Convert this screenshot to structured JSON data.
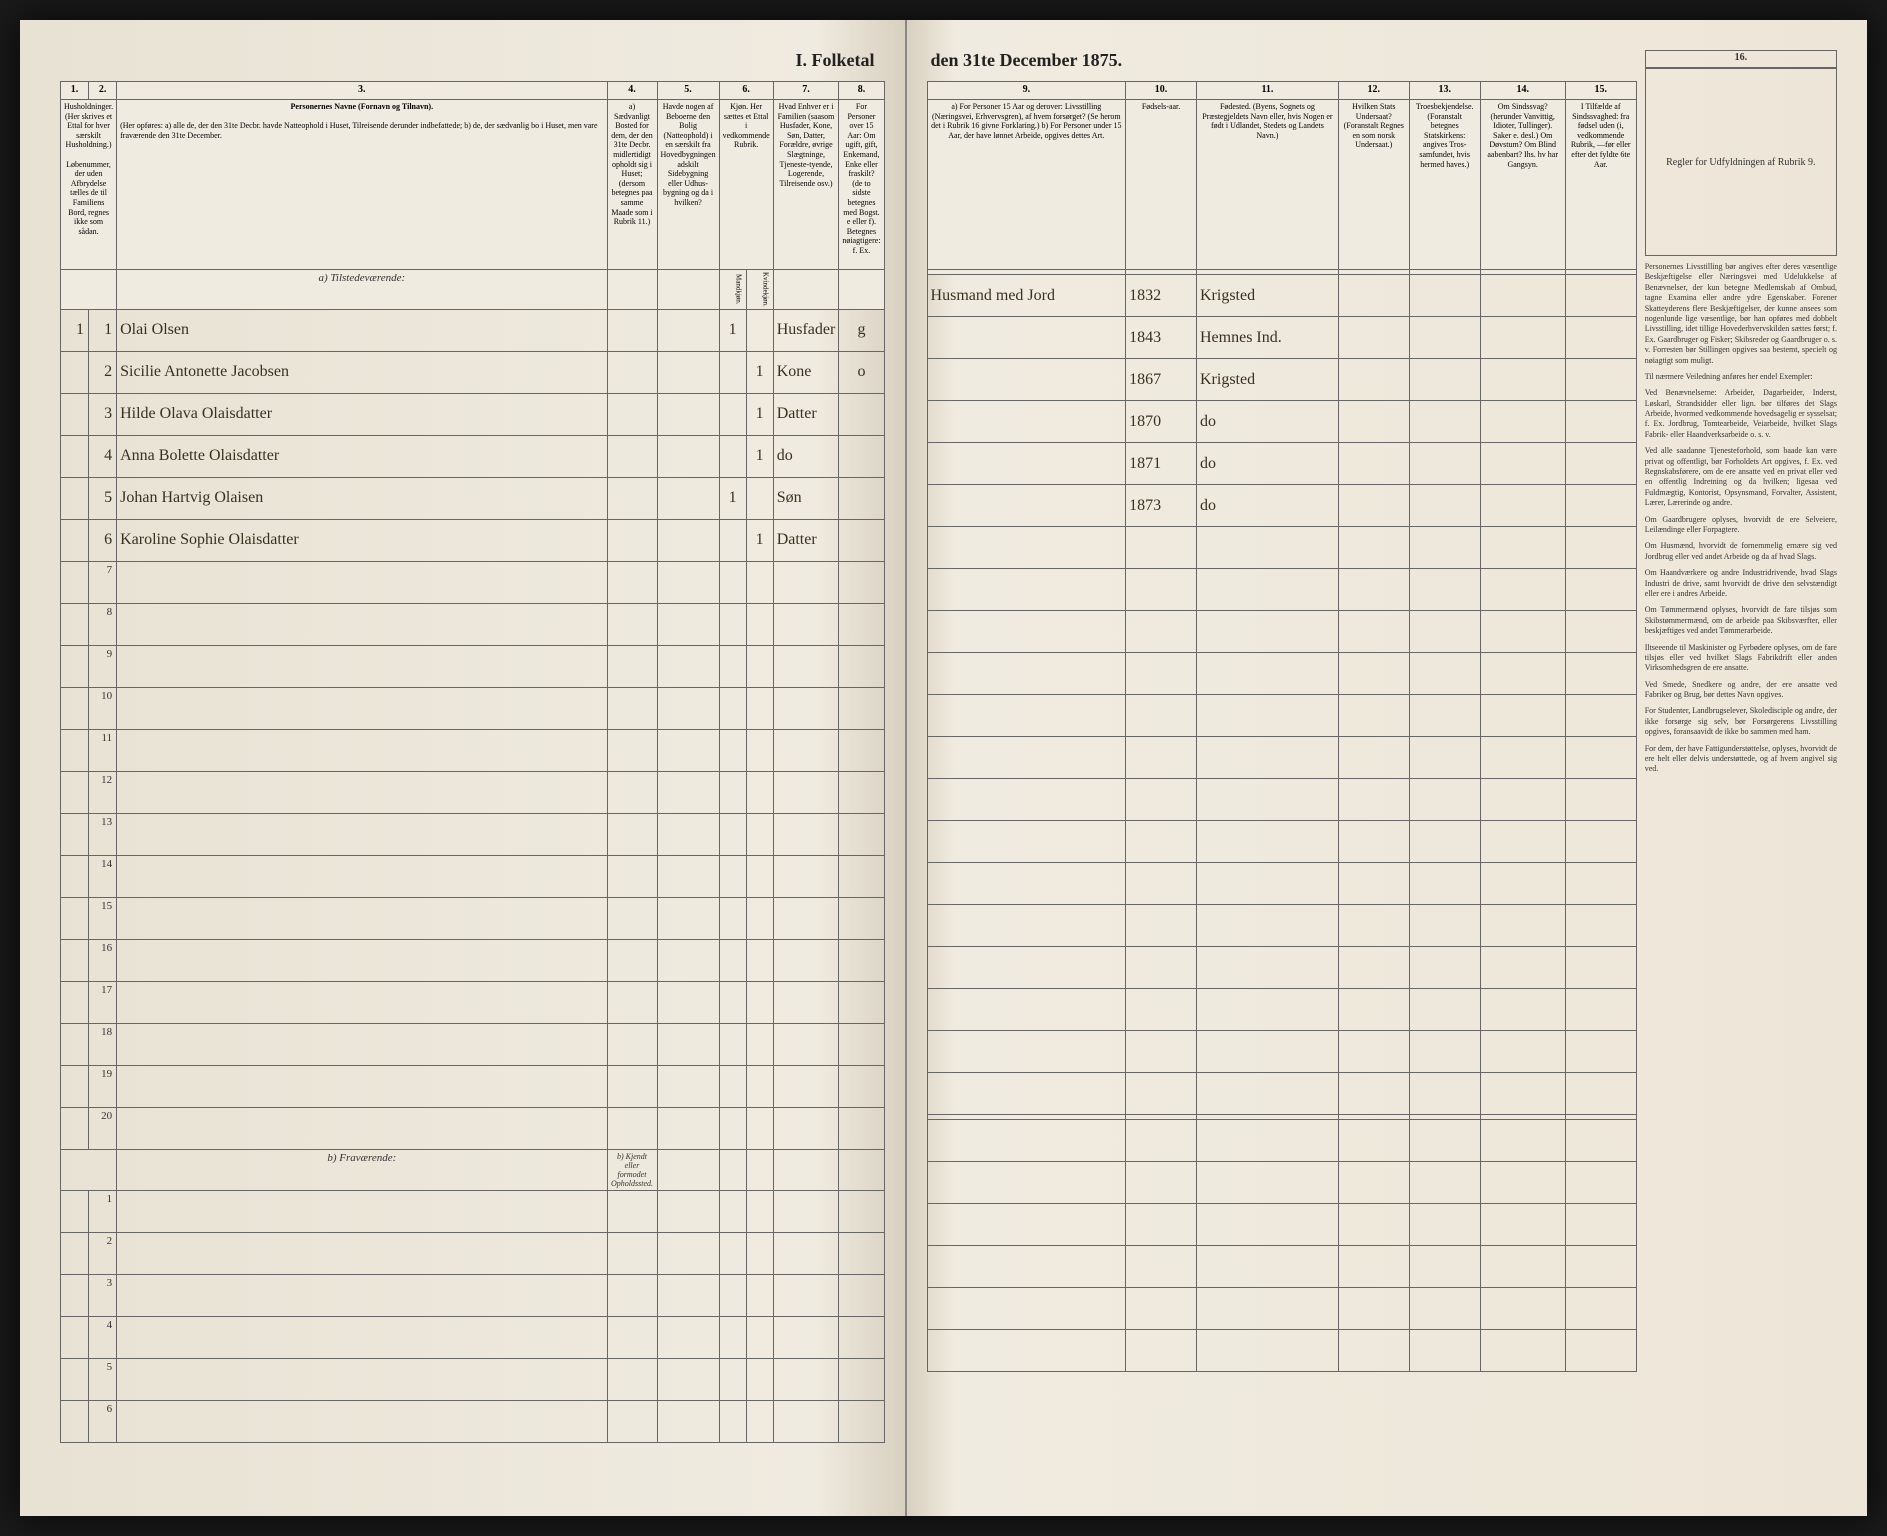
{
  "title_left": "I. Folketal",
  "title_right": "den 31te December 1875.",
  "columns_left": {
    "c1": "1.",
    "c2": "2.",
    "c3": "3.",
    "c4": "4.",
    "c5": "5.",
    "c6": "6.",
    "c7": "7.",
    "c8": "8."
  },
  "columns_right": {
    "c9": "9.",
    "c10": "10.",
    "c11": "11.",
    "c12": "12.",
    "c13": "13.",
    "c14": "14.",
    "c15": "15.",
    "c16": "16."
  },
  "headers_left": {
    "h1_2": "Husholdninger. (Her skrives et Ettal for hver særskilt Husholdning.)",
    "h1_2b": "Løbenummer, der uden Afbrydelse tælles de til Familiens Bord, regnes ikke som sådan.",
    "h3_title": "Personernes Navne (Fornavn og Tilnavn).",
    "h3_body": "(Her opføres:\na) alle de, der den 31te Decbr. havde Natteophold i Huset, Tilreisende derunder indbefattede;\nb) de, der sædvanlig bo i Huset, men vare fraværende den 31te December.",
    "h4": "a) Sædvanligt Bosted for dem, der den 31te Decbr. midlertidigt opholdt sig i Huset; (dersom betegnes paa samme Maade som i Rubrik 11.)",
    "h5": "Havde nogen af Beboerne den Bolig (Natteophold) i en særskilt fra Hovedbygningen adskilt Sidebygning eller Udhus-bygning og da i hvilken?",
    "h6": "Kjøn. Her sættes et Ettal i vedkommende Rubrik.",
    "h6a": "Mandkjøn.",
    "h6b": "Kvindekjøn.",
    "h7": "Hvad Enhver er i Familien (saasom Husfader, Kone, Søn, Datter, Forældre, øvrige Slægtninge, Tjeneste-tyende, Logerende, Tilreisende osv.)",
    "h8": "For Personer over 15 Aar: Om ugift, gift, Enkemand, Enke eller fraskilt? (de to sidste betegnes med Bogst. e eller f). Betegnes nøiagtigere: f. Ex."
  },
  "headers_right": {
    "h9": "a) For Personer 15 Aar og derover: Livsstilling (Næringsvei, Erhvervsgren), af hvem forsørget? (Se herom det i Rubrik 16 givne Forklaring.)\nb) For Personer under 15 Aar, der have lønnet Arbeide, opgives dettes Art.",
    "h10": "Fødsels-aar.",
    "h11": "Fødested. (Byens, Sognets og Præstegjeldets Navn eller, hvis Nogen er født i Udlandet, Stedets og Landets Navn.)",
    "h12": "Hvilken Stats Undersaat? (Foranstalt Regnes en som norsk Undersaat.)",
    "h13": "Troesbekjendelse. (Foranstalt betegnes Statskirkens: angives Tros-samfundet, hvis hermed haves.)",
    "h14": "Om Sindssvag? (herunder Vanvittig, Idioter, Tullinger). Saker e. desl.) Om Døvstum? Om Blind aabenbart? Ihs. hv har Gangsyn.",
    "h15": "I Tilfælde af Sindssvaghed: fra fødsel uden (i, vedkommende Rubrik, —før eller efter det fyldte 6te Aar.",
    "h16_title": "Regler for Udfyldningen af Rubrik 9."
  },
  "section_a": "a) Tilstedeværende:",
  "section_b": "b) Fraværende:",
  "section_b_sub": "b) Kjendt eller formodet Opholdssted.",
  "rows": [
    {
      "n": "1",
      "name": "Olai Olsen",
      "m": "1",
      "k": "",
      "rel": "Husfader",
      "stat": "g",
      "occ": "Husmand med Jord",
      "year": "1832",
      "place": "Krigsted"
    },
    {
      "n": "2",
      "name": "Sicilie Antonette Jacobsen",
      "m": "",
      "k": "1",
      "rel": "Kone",
      "stat": "o",
      "occ": "",
      "year": "1843",
      "place": "Hemnes Ind."
    },
    {
      "n": "3",
      "name": "Hilde Olava Olaisdatter",
      "m": "",
      "k": "1",
      "rel": "Datter",
      "stat": "",
      "occ": "",
      "year": "1867",
      "place": "Krigsted"
    },
    {
      "n": "4",
      "name": "Anna Bolette Olaisdatter",
      "m": "",
      "k": "1",
      "rel": "do",
      "stat": "",
      "occ": "",
      "year": "1870",
      "place": "do"
    },
    {
      "n": "5",
      "name": "Johan Hartvig Olaisen",
      "m": "1",
      "k": "",
      "rel": "Søn",
      "stat": "",
      "occ": "",
      "year": "1871",
      "place": "do"
    },
    {
      "n": "6",
      "name": "Karoline Sophie Olaisdatter",
      "m": "",
      "k": "1",
      "rel": "Datter",
      "stat": "",
      "occ": "",
      "year": "1873",
      "place": "do"
    }
  ],
  "empty_rows_a": [
    "7",
    "8",
    "9",
    "10",
    "11",
    "12",
    "13",
    "14",
    "15",
    "16",
    "17",
    "18",
    "19",
    "20"
  ],
  "empty_rows_b": [
    "1",
    "2",
    "3",
    "4",
    "5",
    "6"
  ],
  "instructions": {
    "p1": "Personernes Livsstilling bør angives efter deres væsentlige Beskjæftigelse eller Næringsvei med Udelukkelse af Benævnelser, der kun betegne Medlemskab af Ombud, tagne Examina eller andre ydre Egenskaber. Forener Skatteyderens flere Beskjæftigelser, der kunne ansees som nogenlunde lige væsentlige, bør han opføres med dobbelt Livsstilling, idet tillige Hovederhvervskilden sættes først; f. Ex. Gaardbruger og Fisker; Skibsreder og Gaardbruger o. s. v. Forresten bør Stillingen opgives saa bestemt, specielt og nøiagtigt som muligt.",
    "p2": "Til nærmere Veiledning anføres her endel Exempler:",
    "p3": "Ved Benævnelserne: Arbeider, Dagarbeider, Inderst, Løskarl, Strandsidder eller lign. bør tilføres det Slags Arbeide, hvormed vedkommende hovedsagelig er sysselsat; f. Ex. Jordbrug, Tomtearbeide, Veiarbeide, hvilket Slags Fabrik- eller Haandverksarbeide o. s. v.",
    "p4": "Ved alle saadanne Tjenesteforhold, som baade kan være privat og offentligt, bør Forholdets Art opgives, f. Ex. ved Regnskabsførere, om de ere ansatte ved en privat eller ved en offentlig Indretning og da hvilken; ligesaa ved Fuldmægtig, Kontorist, Opsynsmand, Forvalter, Assistent, Lærer, Lærerinde og andre.",
    "p5": "Om Gaardbrugere oplyses, hvorvidt de ere Selveiere, Leilændinge eller Forpagtere.",
    "p6": "Om Husmænd, hvorvidt de fornemmelig ernære sig ved Jordbrug eller ved andet Arbeide og da af hvad Slags.",
    "p7": "Om Haandværkere og andre Industridrivende, hvad Slags Industri de drive, samt hvorvidt de drive den selvstændigt eller ere i andres Arbeide.",
    "p8": "Om Tømmermænd oplyses, hvorvidt de fare tilsjøs som Skibstømmermænd, om de arbeide paa Skibsværfter, eller beskjæftiges ved andet Tømmerarbeide.",
    "p9": "Iltseeende til Maskinister og Fyrbødere oplyses, om de fare tilsjøs eller ved hvilket Slags Fabrikdrift eller anden Virksomhedsgren de ere ansatte.",
    "p10": "Ved Smede, Snedkere og andre, der ere ansatte ved Fabriker og Brug, bør dettes Navn opgives.",
    "p11": "For Studenter, Landbrugselever, Skoledisciple og andre, der ikke forsørge sig selv, bør Forsørgerens Livsstilling opgives, foransaavidt de ikke bo sammen med ham.",
    "p12": "For dem, der have Fattigunderstøttelse, oplyses, hvorvidt de ere helt eller delvis understøttede, og af hvem angivel sig ved."
  }
}
